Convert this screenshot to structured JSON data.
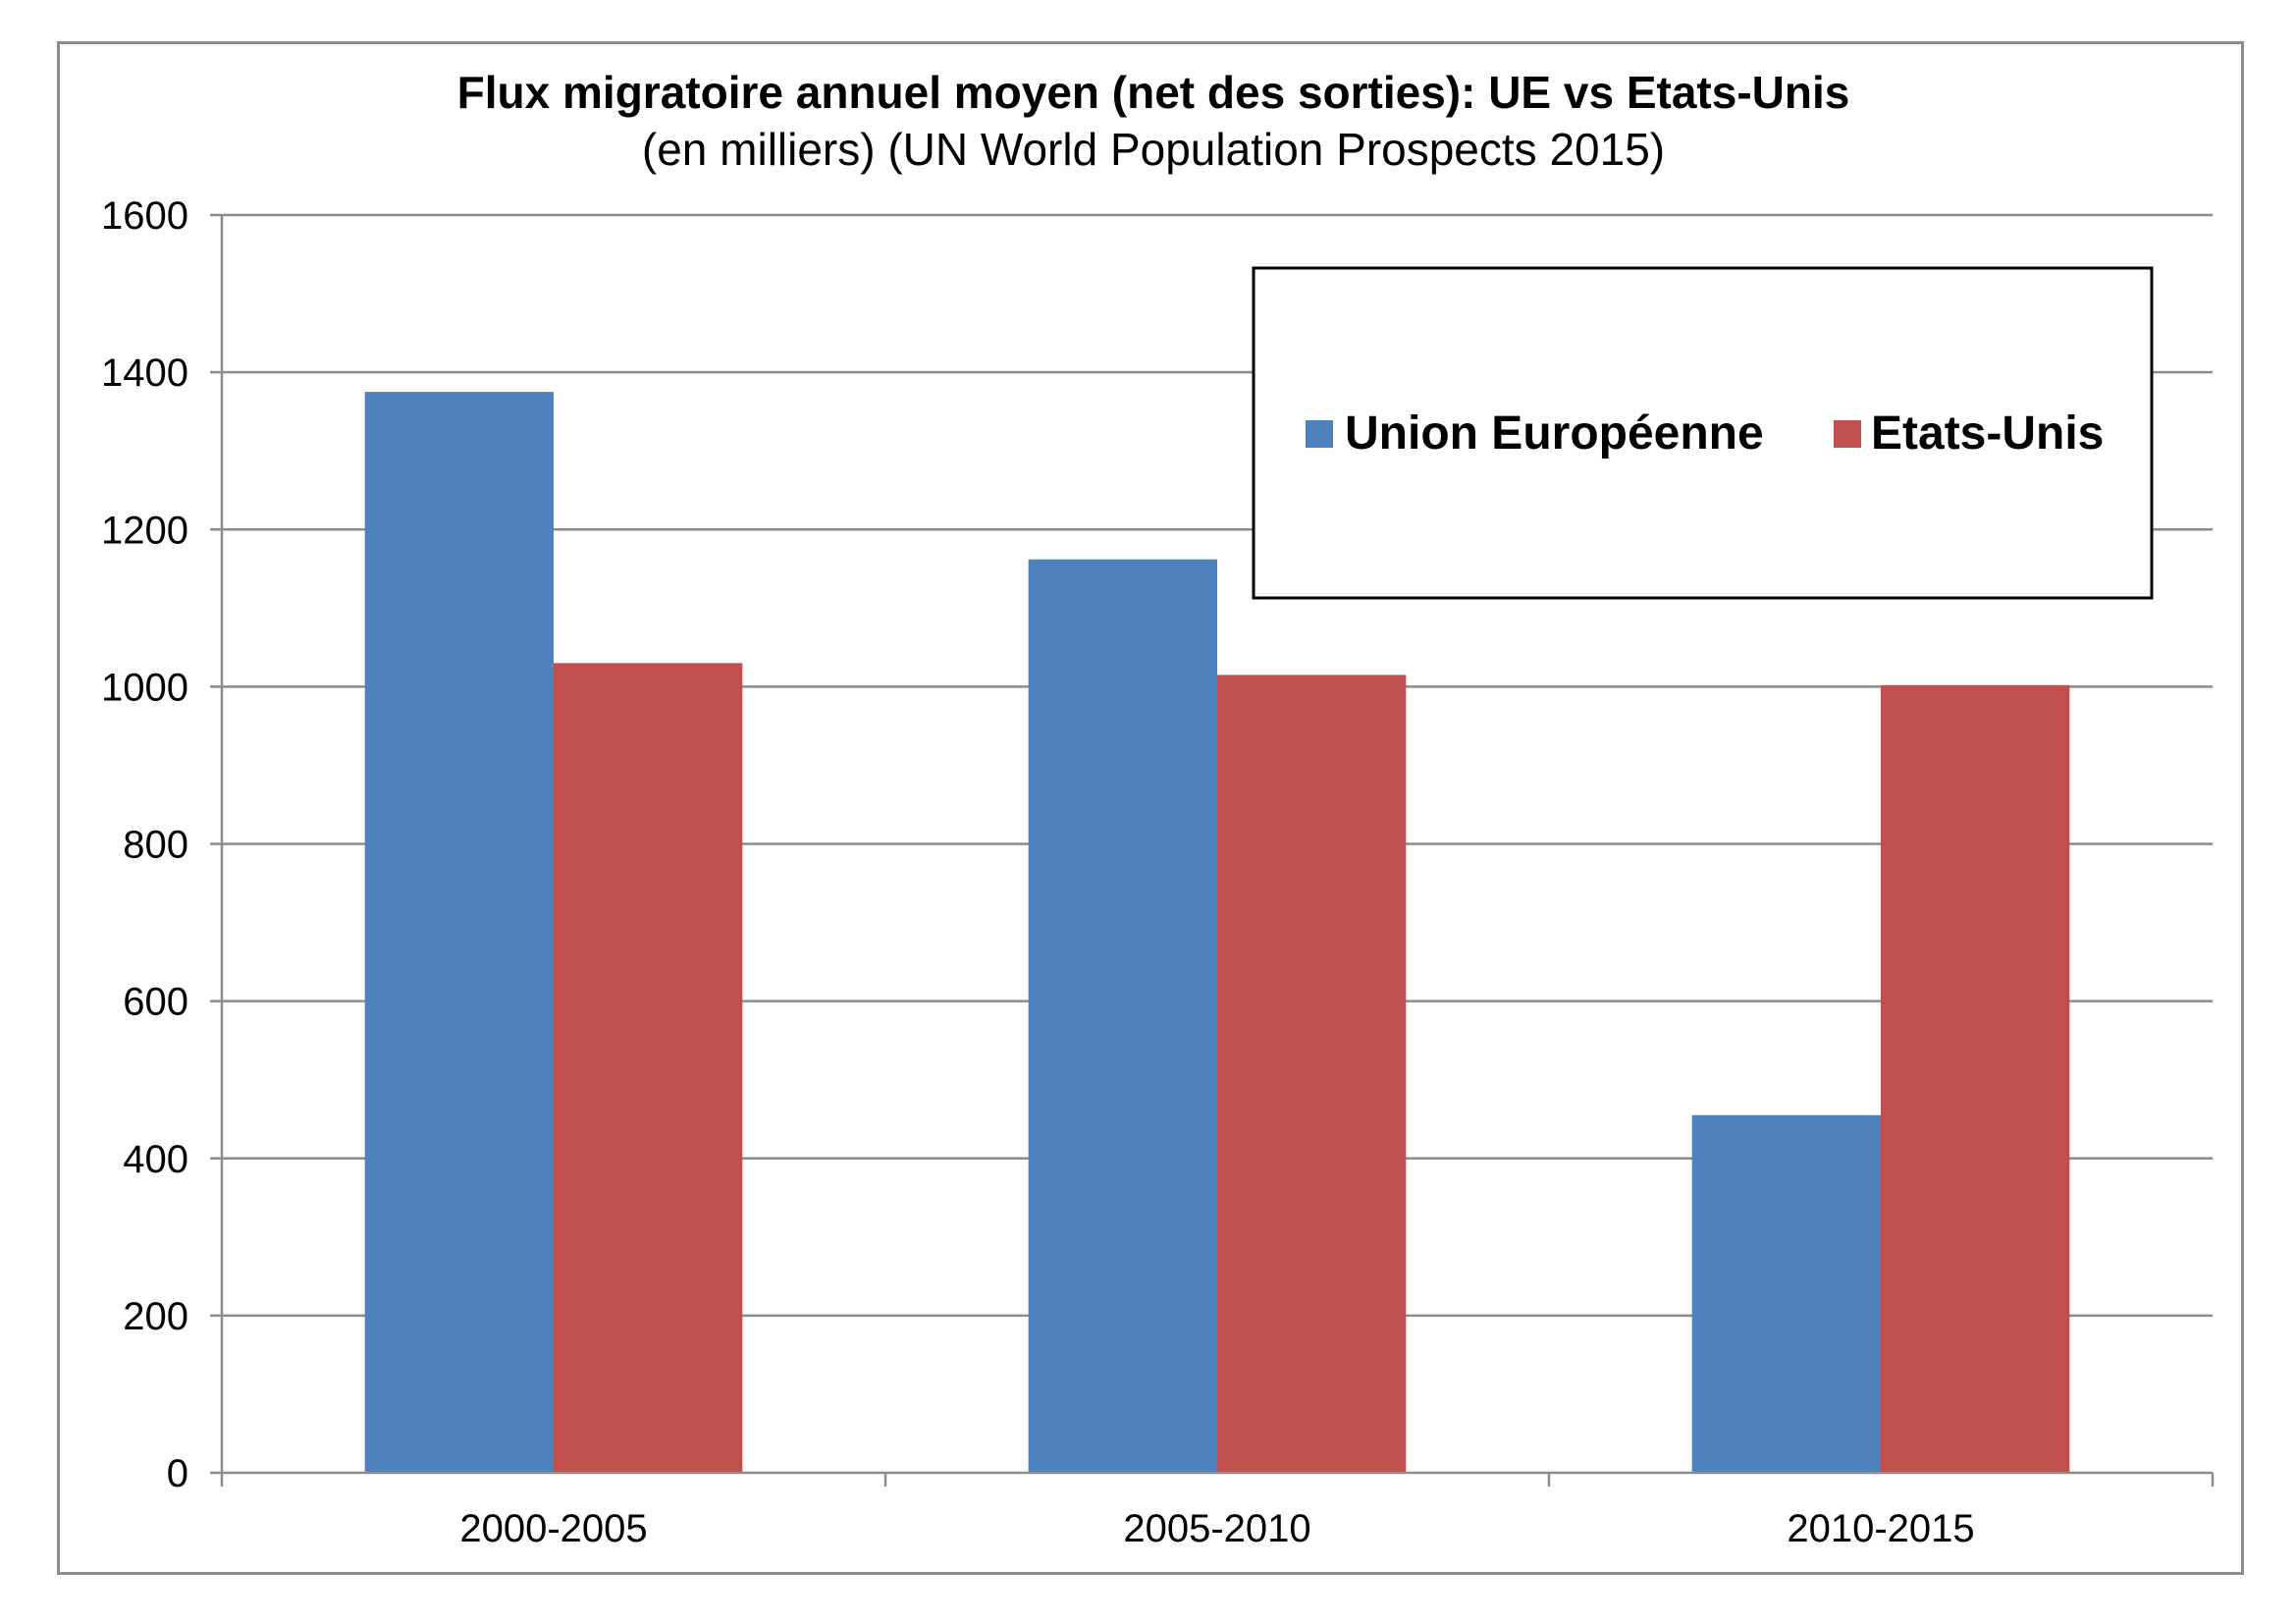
{
  "chart_data": {
    "type": "bar",
    "title": "Flux migratoire annuel moyen (net des sorties): UE vs Etats-Unis",
    "subtitle": "(en milliers) (UN World Population Prospects 2015)",
    "categories": [
      "2000-2005",
      "2005-2010",
      "2010-2015"
    ],
    "series": [
      {
        "name": "Union Européenne",
        "values": [
          1375,
          1162,
          455
        ],
        "color": "#4f81bd"
      },
      {
        "name": "Etats-Unis",
        "values": [
          1030,
          1015,
          1002
        ],
        "color": "#c0504d"
      }
    ],
    "xlabel": "",
    "ylabel": "",
    "ylim": [
      0,
      1600
    ],
    "yticks": [
      0,
      200,
      400,
      600,
      800,
      1000,
      1200,
      1400,
      1600
    ],
    "grid": true,
    "legend_position": "top-right"
  }
}
